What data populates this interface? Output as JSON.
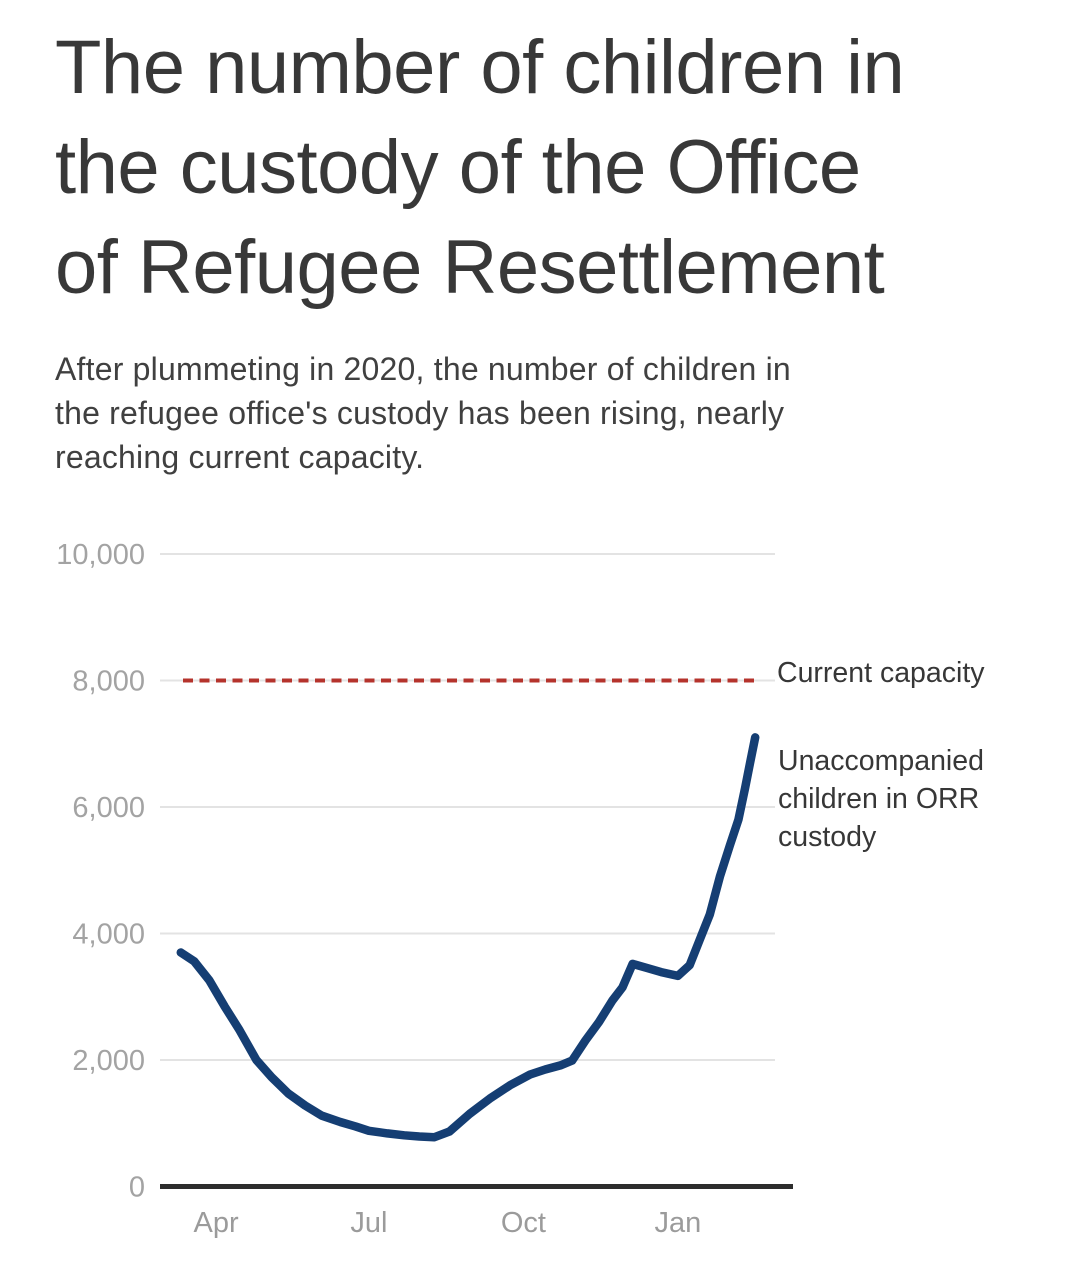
{
  "header": {
    "title_lines": [
      "The number of children in",
      "the custody of the Office",
      "of Refugee Resettlement"
    ],
    "subtitle_lines": [
      "After plummeting in 2020, the number of children in",
      "the refugee office's custody has been rising, nearly",
      "reaching current capacity."
    ]
  },
  "chart_data": {
    "type": "line",
    "title": "The number of children in the custody of the Office of Refugee Resettlement",
    "subtitle": "After plummeting in 2020, the number of children in the refugee office's custody has been rising, nearly reaching current capacity.",
    "legend_position": "right",
    "grid": true,
    "colors": {
      "series": "#153e73",
      "reference": "#b5332c",
      "gridline": "#e3e3e3",
      "axis_line": "#2d2d2d",
      "y_tick_label": "#a3a3a3",
      "x_tick_label": "#9b9b9b",
      "text": "#373737"
    },
    "x_axis": {
      "type": "time",
      "domain": [
        "2020-03-01",
        "2021-03-01"
      ],
      "tick_labels": [
        "Apr",
        "Jul",
        "Oct",
        "Jan"
      ],
      "tick_dates": [
        "2020-04-01",
        "2020-07-01",
        "2020-10-01",
        "2021-01-01"
      ]
    },
    "y_axis": {
      "domain": [
        0,
        10000
      ],
      "ticks": [
        10000,
        8000,
        6000,
        4000,
        2000,
        0
      ],
      "tick_labels": [
        "10,000",
        "8,000",
        "6,000",
        "4,000",
        "2,000",
        "0"
      ]
    },
    "reference_line": {
      "label": "Current capacity",
      "value": 8000,
      "style": "dashed"
    },
    "series": [
      {
        "name": "Unaccompanied children in ORR custody",
        "label_lines": [
          "Unaccompanied",
          "children in ORR",
          "custody"
        ],
        "points": [
          [
            "2020-03-11",
            3700
          ],
          [
            "2020-03-19",
            3560
          ],
          [
            "2020-03-28",
            3260
          ],
          [
            "2020-04-06",
            2850
          ],
          [
            "2020-04-15",
            2470
          ],
          [
            "2020-04-25",
            2000
          ],
          [
            "2020-05-04",
            1730
          ],
          [
            "2020-05-14",
            1470
          ],
          [
            "2020-05-24",
            1280
          ],
          [
            "2020-06-03",
            1120
          ],
          [
            "2020-06-14",
            1020
          ],
          [
            "2020-06-23",
            950
          ],
          [
            "2020-07-01",
            880
          ],
          [
            "2020-07-12",
            840
          ],
          [
            "2020-07-22",
            810
          ],
          [
            "2020-07-31",
            790
          ],
          [
            "2020-08-09",
            780
          ],
          [
            "2020-08-18",
            870
          ],
          [
            "2020-08-30",
            1150
          ],
          [
            "2020-09-11",
            1390
          ],
          [
            "2020-09-23",
            1600
          ],
          [
            "2020-10-05",
            1770
          ],
          [
            "2020-10-14",
            1850
          ],
          [
            "2020-10-23",
            1915
          ],
          [
            "2020-10-30",
            1990
          ],
          [
            "2020-11-07",
            2310
          ],
          [
            "2020-11-15",
            2600
          ],
          [
            "2020-11-23",
            2940
          ],
          [
            "2020-11-29",
            3150
          ],
          [
            "2020-12-05",
            3520
          ],
          [
            "2020-12-13",
            3460
          ],
          [
            "2020-12-22",
            3390
          ],
          [
            "2021-01-01",
            3330
          ],
          [
            "2021-01-08",
            3500
          ],
          [
            "2021-01-14",
            3900
          ],
          [
            "2021-01-20",
            4300
          ],
          [
            "2021-01-26",
            4900
          ],
          [
            "2021-02-01",
            5400
          ],
          [
            "2021-02-06",
            5800
          ],
          [
            "2021-02-10",
            6300
          ],
          [
            "2021-02-13",
            6700
          ],
          [
            "2021-02-16",
            7100
          ]
        ]
      }
    ]
  }
}
